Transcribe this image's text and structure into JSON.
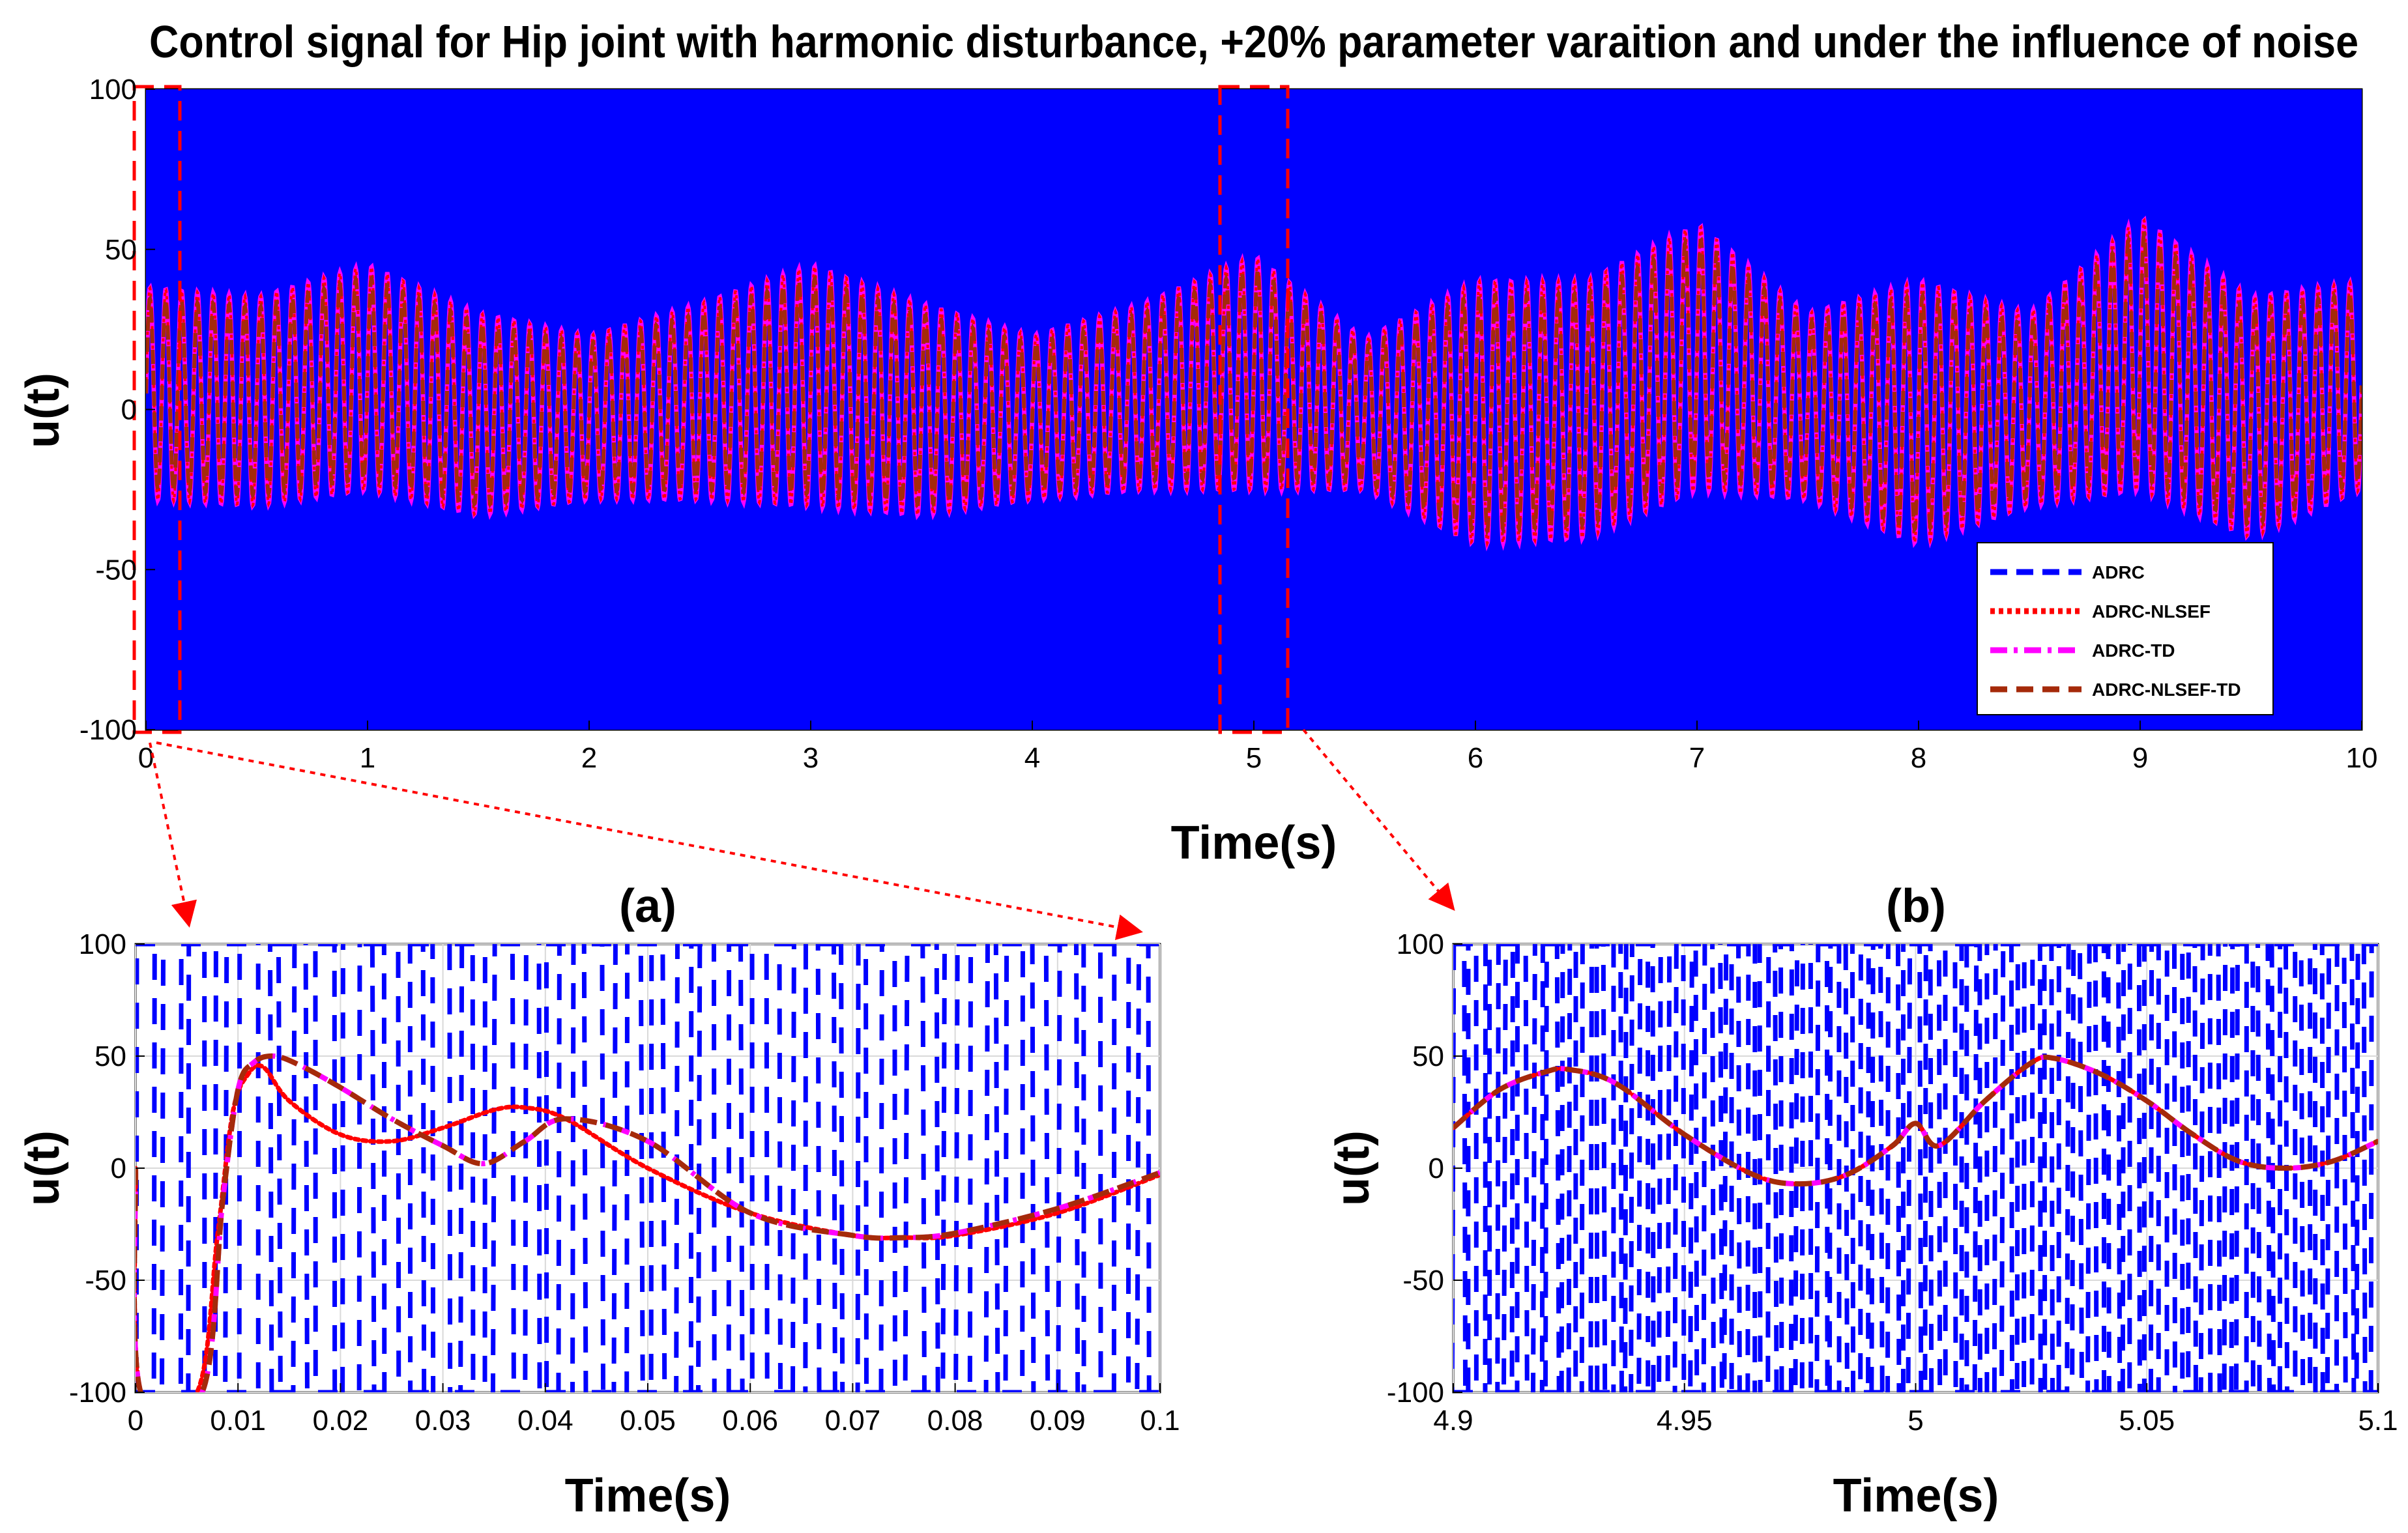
{
  "chart_data": [
    {
      "id": "main",
      "type": "line",
      "title": "Control signal for Hip joint with harmonic disturbance, +20% parameter varaition and under the influence of noise",
      "xlabel": "Time(s)",
      "ylabel": "u(t)",
      "xlim": [
        0,
        10
      ],
      "ylim": [
        -100,
        100
      ],
      "xticks": [
        0,
        1,
        2,
        3,
        4,
        5,
        6,
        7,
        8,
        9,
        10
      ],
      "yticks": [
        100,
        50,
        0,
        -50,
        -100
      ],
      "xtick_labels": [
        "0",
        "1",
        "2",
        "3",
        "4",
        "5",
        "6",
        "7",
        "8",
        "9",
        "10"
      ],
      "ytick_labels": [
        "100",
        "50",
        "0",
        "-50",
        "-100"
      ],
      "legend": {
        "position": "bottom-right",
        "entries": [
          "ADRC",
          "ADRC-NLSEF",
          "ADRC-TD",
          "ADRC-NLSEF-TD"
        ]
      },
      "zoom_regions": [
        {
          "label": "(a)",
          "x": [
            0,
            0.1
          ],
          "y": [
            -100,
            100
          ]
        },
        {
          "label": "(b)",
          "x": [
            4.9,
            5.1
          ],
          "y": [
            -100,
            100
          ]
        }
      ],
      "series": [
        {
          "name": "ADRC",
          "color": "#0000ff",
          "style": "dashed",
          "description_values": "bang-bang switching between -100 and 100"
        },
        {
          "name": "ADRC-NLSEF",
          "color": "#ff0000",
          "style": "dotted"
        },
        {
          "name": "ADRC-TD",
          "color": "#ff00ff",
          "style": "dashdot"
        },
        {
          "name": "ADRC-NLSEF-TD",
          "color": "#a52a0a",
          "style": "dashed",
          "envelope_x": [
            0,
            0.5,
            1,
            1.5,
            2,
            2.5,
            3,
            3.5,
            4,
            4.5,
            5,
            5.5,
            6,
            6.5,
            7,
            7.5,
            8,
            8.5,
            9,
            9.5,
            10
          ],
          "envelope_max": [
            38,
            35,
            45,
            30,
            23,
            33,
            45,
            33,
            23,
            33,
            48,
            22,
            40,
            40,
            58,
            30,
            40,
            30,
            60,
            35,
            40
          ],
          "envelope_min": [
            -28,
            -30,
            -25,
            -33,
            -28,
            -28,
            -30,
            -33,
            -28,
            -25,
            -25,
            -25,
            -42,
            -40,
            -25,
            -28,
            -42,
            -30,
            -25,
            -40,
            -25
          ]
        }
      ]
    },
    {
      "id": "zoom-a",
      "type": "line",
      "title": "(a)",
      "xlabel": "Time(s)",
      "ylabel": "u(t)",
      "xlim": [
        0,
        0.1
      ],
      "ylim": [
        -100,
        100
      ],
      "xticks": [
        0,
        0.01,
        0.02,
        0.03,
        0.04,
        0.05,
        0.06,
        0.07,
        0.08,
        0.09,
        0.1
      ],
      "yticks": [
        100,
        50,
        0,
        -50,
        -100
      ],
      "xtick_labels": [
        "0",
        "0.01",
        "0.02",
        "0.03",
        "0.04",
        "0.05",
        "0.06",
        "0.07",
        "0.08",
        "0.09",
        "0.1"
      ],
      "ytick_labels": [
        "100",
        "50",
        "0",
        "-50",
        "-100"
      ],
      "grid": true,
      "series": [
        {
          "name": "ADRC",
          "color": "#0000ff",
          "style": "dashed",
          "levels": [
            -100,
            100
          ]
        },
        {
          "name": "ADRC-NLSEF",
          "color": "#ff0000",
          "style": "dotted",
          "x": [
            0,
            0.0005,
            0.006,
            0.008,
            0.0095,
            0.011,
            0.0125,
            0.015,
            0.02,
            0.025,
            0.03,
            0.035,
            0.038,
            0.042,
            0.05,
            0.06,
            0.07,
            0.075,
            0.08,
            0.09,
            0.1
          ],
          "y": [
            0,
            -100,
            -100,
            -30,
            25,
            42,
            45,
            30,
            15,
            12,
            18,
            26,
            27,
            22,
            0,
            -20,
            -30,
            -31,
            -30,
            -20,
            -3
          ]
        },
        {
          "name": "ADRC-TD",
          "color": "#ff00ff",
          "style": "dashdot",
          "x": [
            0,
            0.0005,
            0.0065,
            0.0085,
            0.01,
            0.0115,
            0.0135,
            0.016,
            0.02,
            0.025,
            0.03,
            0.034,
            0.038,
            0.042,
            0.05,
            0.06,
            0.07,
            0.075,
            0.08,
            0.09,
            0.1
          ],
          "y": [
            0,
            -100,
            -100,
            -15,
            35,
            47,
            50,
            46,
            36,
            22,
            10,
            2,
            12,
            22,
            12,
            -20,
            -30,
            -31,
            -29,
            -18,
            -2
          ]
        },
        {
          "name": "ADRC-NLSEF-TD",
          "color": "#a52a0a",
          "style": "dashed",
          "x": [
            0,
            0.0005,
            0.0065,
            0.0085,
            0.01,
            0.0115,
            0.0135,
            0.016,
            0.02,
            0.025,
            0.03,
            0.034,
            0.038,
            0.042,
            0.05,
            0.06,
            0.07,
            0.075,
            0.08,
            0.09,
            0.1
          ],
          "y": [
            0,
            -100,
            -100,
            -15,
            35,
            47,
            50,
            46,
            36,
            22,
            10,
            2,
            12,
            22,
            12,
            -20,
            -30,
            -31,
            -29,
            -18,
            -2
          ]
        }
      ]
    },
    {
      "id": "zoom-b",
      "type": "line",
      "title": "(b)",
      "xlabel": "Time(s)",
      "ylabel": "u(t)",
      "xlim": [
        4.9,
        5.1
      ],
      "ylim": [
        -100,
        100
      ],
      "xticks": [
        4.9,
        4.95,
        5,
        5.05,
        5.1
      ],
      "yticks": [
        100,
        50,
        0,
        -50,
        -100
      ],
      "xtick_labels": [
        "4.9",
        "4.95",
        "5",
        "5.05",
        "5.1"
      ],
      "ytick_labels": [
        "100",
        "50",
        "0",
        "-50",
        "-100"
      ],
      "grid": true,
      "series": [
        {
          "name": "ADRC",
          "color": "#0000ff",
          "style": "dashed",
          "levels": [
            -100,
            100
          ]
        },
        {
          "name": "ADRC-NLSEF",
          "color": "#ff0000",
          "style": "dotted",
          "x": [
            4.9,
            4.91,
            4.92,
            4.925,
            4.935,
            4.95,
            4.965,
            4.975,
            4.985,
            4.995,
            5.0,
            5.005,
            5.015,
            5.025,
            5.03,
            5.04,
            5.05,
            5.06,
            5.07,
            5.08,
            5.09,
            5.1
          ],
          "y": [
            18,
            35,
            43,
            44,
            38,
            15,
            -3,
            -7,
            -3,
            10,
            20,
            10,
            30,
            47,
            49,
            42,
            30,
            15,
            3,
            0,
            3,
            12
          ]
        },
        {
          "name": "ADRC-TD",
          "color": "#ff00ff",
          "style": "dashdot",
          "x": [
            4.9,
            4.91,
            4.92,
            4.925,
            4.935,
            4.95,
            4.965,
            4.975,
            4.985,
            4.995,
            5.0,
            5.005,
            5.015,
            5.025,
            5.03,
            5.04,
            5.05,
            5.06,
            5.07,
            5.08,
            5.09,
            5.1
          ],
          "y": [
            18,
            35,
            43,
            44,
            38,
            15,
            -3,
            -7,
            -3,
            10,
            20,
            10,
            30,
            47,
            49,
            42,
            30,
            15,
            3,
            0,
            3,
            12
          ]
        },
        {
          "name": "ADRC-NLSEF-TD",
          "color": "#a52a0a",
          "style": "dashed",
          "x": [
            4.9,
            4.91,
            4.92,
            4.925,
            4.935,
            4.95,
            4.965,
            4.975,
            4.985,
            4.995,
            5.0,
            5.005,
            5.015,
            5.025,
            5.03,
            5.04,
            5.05,
            5.06,
            5.07,
            5.08,
            5.09,
            5.1
          ],
          "y": [
            18,
            35,
            43,
            44,
            38,
            15,
            -3,
            -7,
            -3,
            10,
            20,
            10,
            30,
            47,
            49,
            42,
            30,
            15,
            3,
            0,
            3,
            12
          ]
        }
      ]
    }
  ]
}
